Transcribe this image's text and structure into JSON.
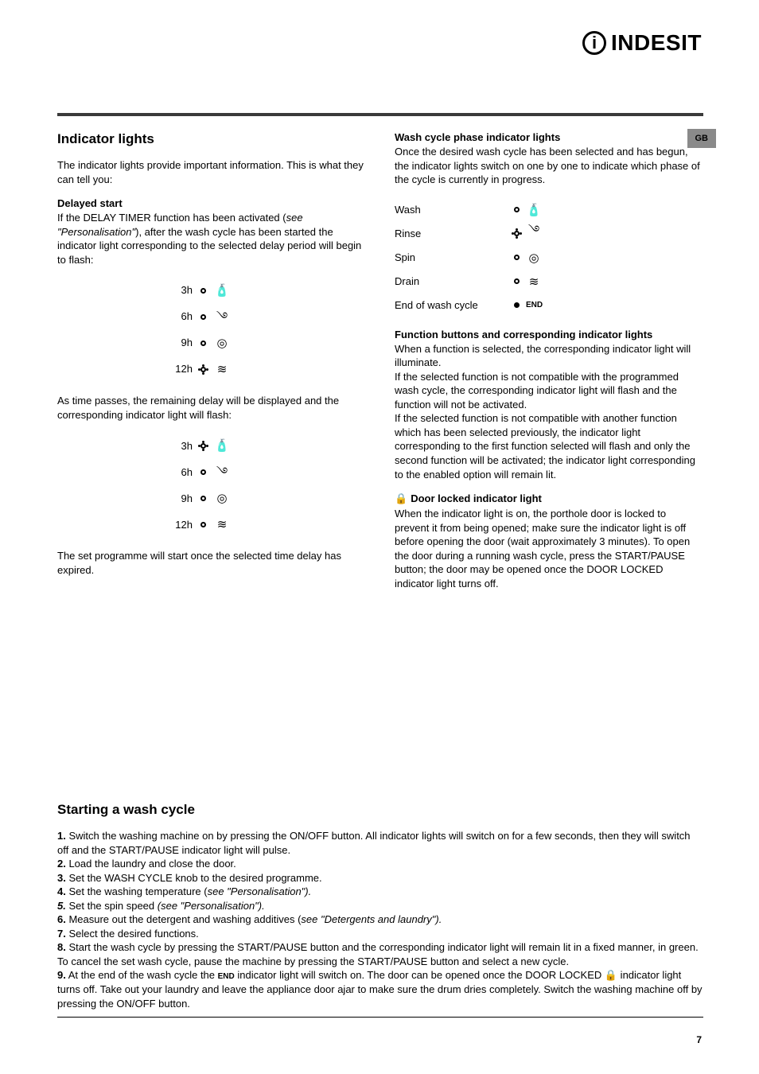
{
  "brand": {
    "icon_letter": "i",
    "name": "INDESIT"
  },
  "page_tab": "GB",
  "page_number": "7",
  "left": {
    "h2": "Indicator lights",
    "intro": "The indicator lights provide important information. This is what they can tell you:",
    "delayed_start": {
      "h3": "Delayed start",
      "p1a": "If the DELAY TIMER function has been activated (",
      "p1b": "see \"Personalisation\"",
      "p1c": "), after the wash cycle has been started the indicator light corresponding to the selected delay period will begin to flash:",
      "rows1": [
        {
          "label": "3h",
          "icon": "🧴",
          "flash": false
        },
        {
          "label": "6h",
          "icon": "࿓",
          "flash": false
        },
        {
          "label": "9h",
          "icon": "◎",
          "flash": false
        },
        {
          "label": "12h",
          "icon": "≋",
          "flash": true
        }
      ],
      "p2": "As time passes, the remaining delay will be displayed and the corresponding indicator light will flash:",
      "rows2": [
        {
          "label": "3h",
          "icon": "🧴",
          "flash": true
        },
        {
          "label": "6h",
          "icon": "࿓",
          "flash": false
        },
        {
          "label": "9h",
          "icon": "◎",
          "flash": false
        },
        {
          "label": "12h",
          "icon": "≋",
          "flash": false
        }
      ],
      "p3": "The set programme will start once the selected time delay has expired."
    }
  },
  "right": {
    "phase": {
      "h3": "Wash cycle phase indicator lights",
      "p1": "Once the desired wash cycle has been selected and has begun, the indicator lights switch on one by one to indicate which phase of the cycle is currently in progress.",
      "rows": [
        {
          "label": "Wash",
          "icon": "🧴",
          "flash": false
        },
        {
          "label": "Rinse",
          "icon": "࿓",
          "flash": true
        },
        {
          "label": "Spin",
          "icon": "◎",
          "flash": false
        },
        {
          "label": "Drain",
          "icon": "≋",
          "flash": false
        }
      ],
      "end_label": "End of wash cycle",
      "end_text": "END"
    },
    "functions": {
      "h3": "Function buttons and corresponding indicator lights",
      "p1": "When a function is selected, the corresponding indicator light will illuminate.",
      "p2": "If the selected function is not compatible with the programmed wash cycle, the corresponding indicator light will flash and the function will not be activated.",
      "p3": "If the selected function is not compatible with another function which has been selected previously, the indicator light corresponding to the first function selected will flash and only the second function will be activated; the indicator light corresponding to the enabled option will remain lit."
    },
    "door": {
      "icon": "🔒",
      "h3": "Door locked indicator light",
      "p1": "When the indicator light is on, the porthole door is locked to prevent it from being opened; make sure the indicator light is off before opening the door (wait approximately 3 minutes). To open the door during a running wash cycle, press the START/PAUSE button; the door may be opened once the DOOR LOCKED indicator light turns off."
    }
  },
  "bottom": {
    "h2": "Starting a wash cycle",
    "steps": [
      {
        "n": "1.",
        "text": " Switch the washing machine on by pressing the ON/OFF button. All indicator lights will switch on for a few seconds, then they will switch off and the START/PAUSE indicator light will pulse."
      },
      {
        "n": "2.",
        "text": " Load the laundry and close the door."
      },
      {
        "n": "3.",
        "text": " Set the WASH CYCLE knob to the desired programme."
      },
      {
        "n": "4.",
        "text_a": " Set the washing temperature (",
        "italic": "see \"Personalisation\").",
        "text_b": ""
      },
      {
        "n": "5.",
        "text_a": " Set the spin speed ",
        "italic": "(see \"Personalisation\").",
        "text_b": ""
      },
      {
        "n": "6.",
        "text_a": " Measure out the detergent and washing additives (",
        "italic": "see \"Detergents and laundry\").",
        "text_b": ""
      },
      {
        "n": "7.",
        "text": " Select the desired functions."
      },
      {
        "n": "8.",
        "text": " Start the wash cycle by pressing the START/PAUSE button and the corresponding indicator light will remain lit in a fixed manner, in green."
      },
      {
        "n": "",
        "text": "To cancel the set wash cycle, pause the machine by pressing the START/PAUSE button and select a new cycle."
      },
      {
        "n": "9.",
        "text_a": " At the end of the wash cycle the ",
        "end_icon": "END",
        "text_b": " indicator light will switch on. The door can be opened once the DOOR LOCKED 🔒 indicator light turns off. Take out your laundry and leave the appliance door ajar to make sure the drum dries completely. Switch the washing machine off by pressing the ON/OFF button."
      }
    ]
  }
}
